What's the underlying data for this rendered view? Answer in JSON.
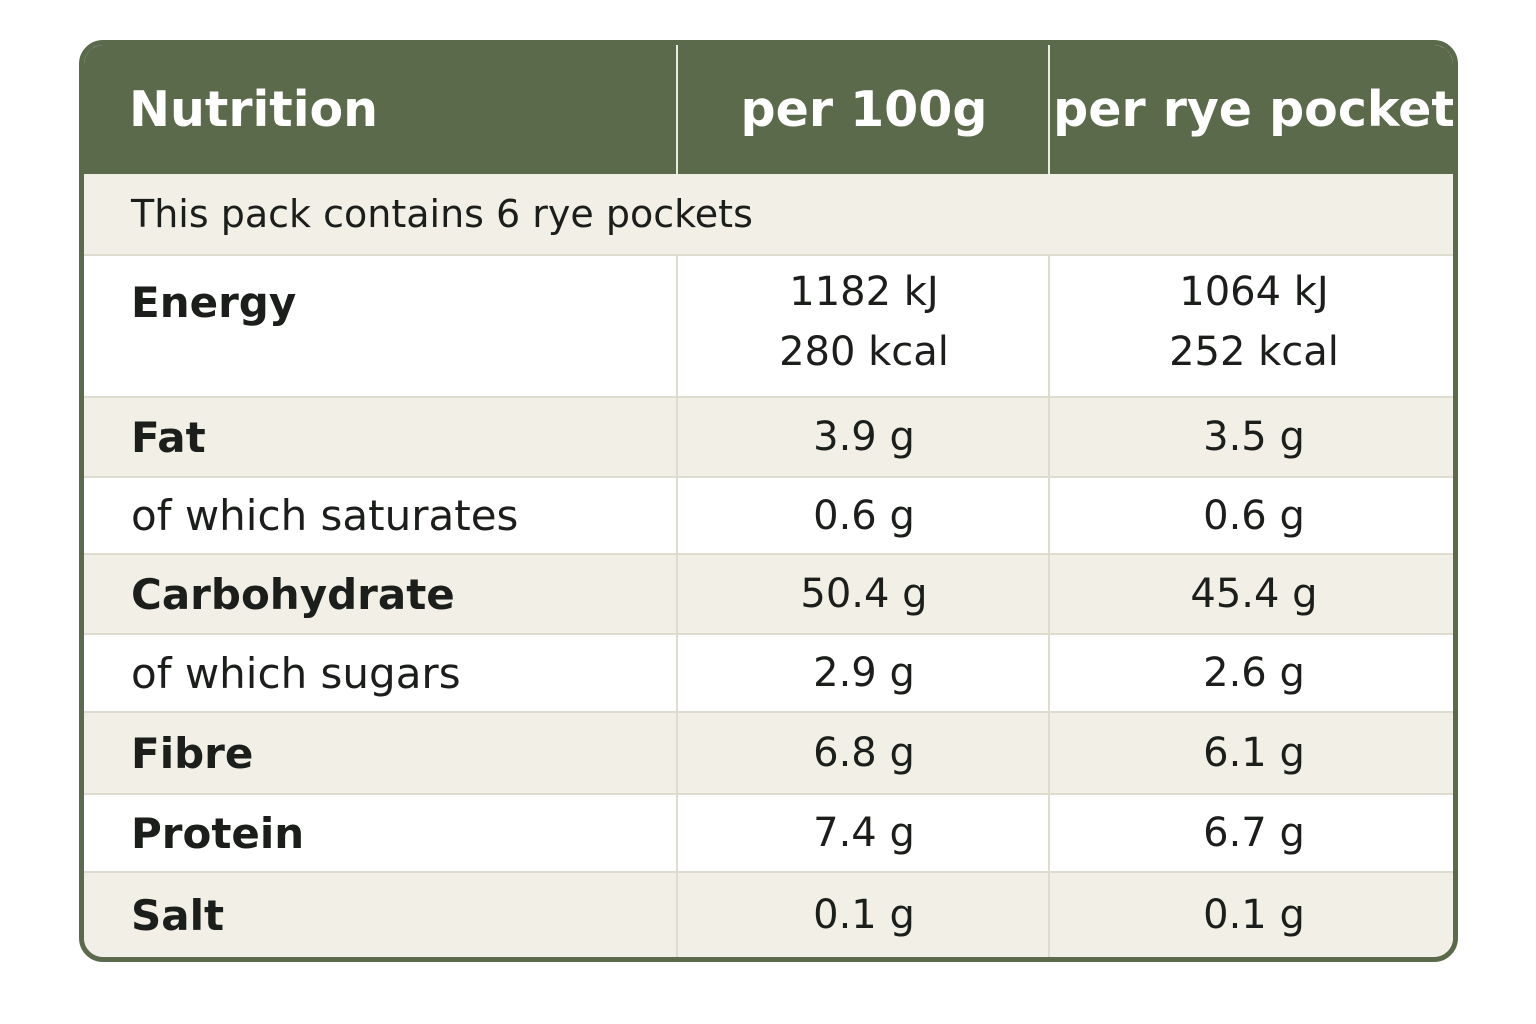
{
  "header": {
    "nutrient_col": "Nutrition",
    "per_100g_col": "per 100g",
    "per_pocket_col": "per rye pocket"
  },
  "pack_note": "This pack contains 6 rye pockets",
  "rows": [
    {
      "label": "Energy",
      "per_100g": "1182 kJ",
      "per_100g_2": "280 kcal",
      "per_pocket": "1064 kJ",
      "per_pocket_2": "252 kcal"
    },
    {
      "label": "Fat",
      "per_100g": "3.9 g",
      "per_pocket": "3.5 g"
    },
    {
      "label": "of which saturates",
      "per_100g": "0.6 g",
      "per_pocket": "0.6 g"
    },
    {
      "label": "Carbohydrate",
      "per_100g": "50.4 g",
      "per_pocket": "45.4 g"
    },
    {
      "label": "of which sugars",
      "per_100g": "2.9 g",
      "per_pocket": "2.6 g"
    },
    {
      "label": "Fibre",
      "per_100g": "6.8 g",
      "per_pocket": "6.1 g"
    },
    {
      "label": "Protein",
      "per_100g": "7.4 g",
      "per_pocket": "6.7 g"
    },
    {
      "label": "Salt",
      "per_100g": "0.1 g",
      "per_pocket": "0.1 g"
    }
  ],
  "colors": {
    "header_bg": "#5b6a4b",
    "shaded_row": "#f1efe6",
    "text": "#1b1e1a"
  }
}
